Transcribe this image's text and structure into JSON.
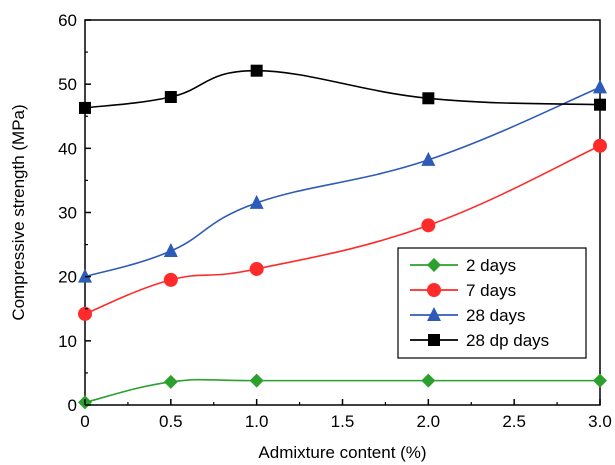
{
  "chart_data": {
    "type": "line",
    "title": "",
    "xlabel": "Admixture content (%)",
    "ylabel": "Compressive strength (MPa)",
    "xlim": [
      0,
      3.0
    ],
    "ylim": [
      0,
      60
    ],
    "x_ticks": [
      "0",
      "0.5",
      "1.0",
      "1.5",
      "2.0",
      "2.5",
      "3.0"
    ],
    "y_ticks": [
      "0",
      "10",
      "20",
      "30",
      "40",
      "50",
      "60"
    ],
    "grid": false,
    "legend_position": "bottom-right",
    "series": [
      {
        "name": "2 days",
        "color": "#2ca02c",
        "marker": "diamond",
        "x": [
          0,
          0.5,
          1.0,
          2.0,
          3.0
        ],
        "y": [
          0.4,
          3.6,
          3.8,
          3.8,
          3.8
        ]
      },
      {
        "name": "7 days",
        "color": "#ff2a2a",
        "marker": "circle",
        "x": [
          0,
          0.5,
          1.0,
          2.0,
          3.0
        ],
        "y": [
          14.2,
          19.5,
          21.2,
          28.0,
          40.4
        ]
      },
      {
        "name": "28 days",
        "color": "#2f5bb8",
        "marker": "triangle",
        "x": [
          0,
          0.5,
          1.0,
          2.0,
          3.0
        ],
        "y": [
          20.0,
          24.0,
          31.5,
          38.2,
          49.5
        ]
      },
      {
        "name": "28 dp days",
        "color": "#000000",
        "marker": "square",
        "x": [
          0,
          0.5,
          1.0,
          2.0,
          3.0
        ],
        "y": [
          46.3,
          48.0,
          52.1,
          47.8,
          46.8
        ]
      }
    ]
  }
}
